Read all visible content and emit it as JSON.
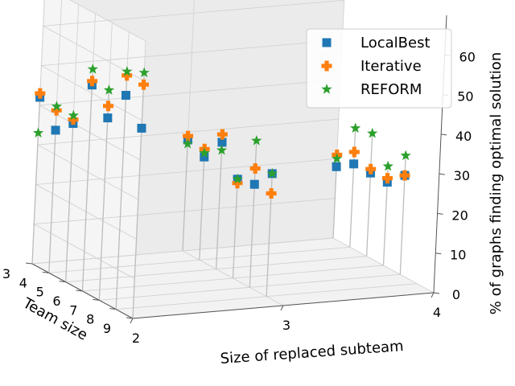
{
  "chart_data": {
    "type": "scatter",
    "projection": "3d",
    "title": "",
    "xlabel": "Size of replaced subteam",
    "ylabel": "Team size",
    "zlabel": "% of graphs finding optimal solution",
    "x_ticks": [
      "2",
      "3",
      "4"
    ],
    "y_ticks": [
      "3",
      "4",
      "5",
      "6",
      "7",
      "8",
      "9"
    ],
    "z_ticks": [
      "0",
      "10",
      "20",
      "30",
      "40",
      "50",
      "60"
    ],
    "zlim": [
      0,
      70
    ],
    "grid": true,
    "legend_position": "top-right",
    "series": [
      {
        "name": "LocalBest",
        "marker": "square",
        "color": "#1f77b4",
        "points": [
          {
            "x": 2,
            "y": 3,
            "z": 42
          },
          {
            "x": 2,
            "y": 4,
            "z": 36
          },
          {
            "x": 2,
            "y": 5,
            "z": 40
          },
          {
            "x": 2,
            "y": 6,
            "z": 52
          },
          {
            "x": 2,
            "y": 7,
            "z": 46
          },
          {
            "x": 2,
            "y": 8,
            "z": 54
          },
          {
            "x": 2,
            "y": 9,
            "z": 48
          },
          {
            "x": 3,
            "y": 3,
            "z": 28
          },
          {
            "x": 3,
            "y": 4,
            "z": 26
          },
          {
            "x": 3,
            "y": 5,
            "z": 32
          },
          {
            "x": 3,
            "y": 6,
            "z": 25
          },
          {
            "x": 3,
            "y": 7,
            "z": 26
          },
          {
            "x": 3,
            "y": 8,
            "z": 31
          },
          {
            "x": 4,
            "y": 3,
            "z": 18
          },
          {
            "x": 4,
            "y": 4,
            "z": 21
          },
          {
            "x": 4,
            "y": 5,
            "z": 21
          },
          {
            "x": 4,
            "y": 6,
            "z": 21
          },
          {
            "x": 4,
            "y": 7,
            "z": 25
          }
        ]
      },
      {
        "name": "Iterative",
        "marker": "plus",
        "color": "#ff7f0e",
        "points": [
          {
            "x": 2,
            "y": 3,
            "z": 43
          },
          {
            "x": 2,
            "y": 4,
            "z": 41
          },
          {
            "x": 2,
            "y": 5,
            "z": 41
          },
          {
            "x": 2,
            "y": 6,
            "z": 53
          },
          {
            "x": 2,
            "y": 7,
            "z": 49
          },
          {
            "x": 2,
            "y": 8,
            "z": 59
          },
          {
            "x": 2,
            "y": 9,
            "z": 59
          },
          {
            "x": 3,
            "y": 3,
            "z": 29
          },
          {
            "x": 3,
            "y": 4,
            "z": 28
          },
          {
            "x": 3,
            "y": 5,
            "z": 34
          },
          {
            "x": 3,
            "y": 6,
            "z": 24
          },
          {
            "x": 3,
            "y": 7,
            "z": 30
          },
          {
            "x": 3,
            "y": 8,
            "z": 26
          },
          {
            "x": 4,
            "y": 3,
            "z": 21
          },
          {
            "x": 4,
            "y": 4,
            "z": 24
          },
          {
            "x": 4,
            "y": 5,
            "z": 22
          },
          {
            "x": 4,
            "y": 6,
            "z": 22
          },
          {
            "x": 4,
            "y": 7,
            "z": 25
          }
        ]
      },
      {
        "name": "REFORM",
        "marker": "star",
        "color": "#2ca02c",
        "points": [
          {
            "x": 2,
            "y": 3,
            "z": 33
          },
          {
            "x": 2,
            "y": 4,
            "z": 42
          },
          {
            "x": 2,
            "y": 5,
            "z": 42
          },
          {
            "x": 2,
            "y": 6,
            "z": 56
          },
          {
            "x": 2,
            "y": 7,
            "z": 53
          },
          {
            "x": 2,
            "y": 8,
            "z": 60
          },
          {
            "x": 2,
            "y": 9,
            "z": 62
          },
          {
            "x": 3,
            "y": 3,
            "z": 27
          },
          {
            "x": 3,
            "y": 4,
            "z": 27
          },
          {
            "x": 3,
            "y": 5,
            "z": 30
          },
          {
            "x": 3,
            "y": 6,
            "z": 25
          },
          {
            "x": 3,
            "y": 7,
            "z": 37
          },
          {
            "x": 3,
            "y": 8,
            "z": 31
          },
          {
            "x": 4,
            "y": 3,
            "z": 20
          },
          {
            "x": 4,
            "y": 4,
            "z": 30
          },
          {
            "x": 4,
            "y": 5,
            "z": 31
          },
          {
            "x": 4,
            "y": 6,
            "z": 25
          },
          {
            "x": 4,
            "y": 7,
            "z": 30
          }
        ]
      }
    ]
  }
}
